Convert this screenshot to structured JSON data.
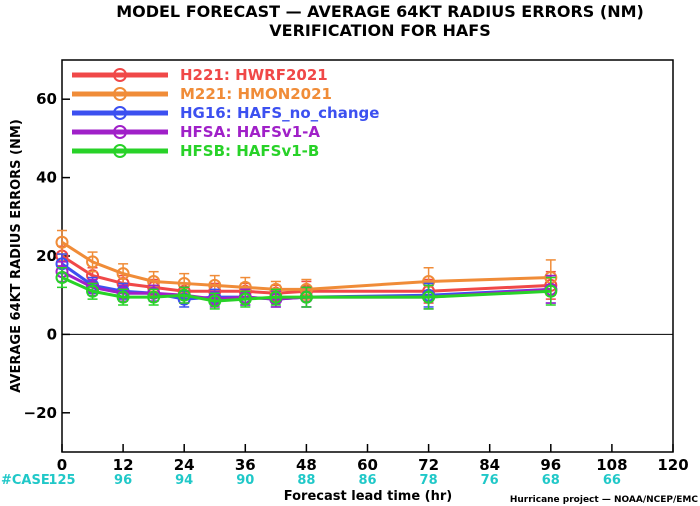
{
  "chart_data": {
    "type": "line",
    "title": "MODEL FORECAST — AVERAGE 64KT RADIUS ERRORS (NM)",
    "subtitle": "VERIFICATION FOR HAFS",
    "xlabel": "Forecast lead time (hr)",
    "ylabel": "AVERAGE 64KT RADIUS ERRORS (NM)",
    "xlim": [
      0,
      120
    ],
    "ylim": [
      -30,
      70
    ],
    "xticks": [
      "0",
      "12",
      "24",
      "36",
      "48",
      "60",
      "72",
      "84",
      "96",
      "108",
      "120"
    ],
    "yticks": [
      "60",
      "40",
      "20",
      "0",
      "−20"
    ],
    "zero_line": true,
    "legend_position": "top-left",
    "x": [
      0,
      6,
      12,
      18,
      24,
      30,
      36,
      42,
      48,
      72,
      96
    ],
    "series": [
      {
        "name": "H221:  HWRF2021",
        "color": "#f04848",
        "values": [
          20,
          15,
          13,
          12,
          11,
          11,
          11,
          10.5,
          11,
          11,
          12.5
        ],
        "err": [
          2.5,
          2.0,
          2.0,
          2.0,
          2.0,
          2.0,
          2.0,
          2.0,
          2.5,
          3.0,
          3.5
        ]
      },
      {
        "name": "M221:  HMON2021",
        "color": "#f08c38",
        "values": [
          23.5,
          18.5,
          15.5,
          13.5,
          13,
          12.5,
          12,
          11.5,
          11.5,
          13.5,
          14.5
        ],
        "err": [
          3.0,
          2.5,
          2.5,
          2.5,
          2.5,
          2.5,
          2.5,
          2.0,
          2.5,
          3.5,
          4.5
        ]
      },
      {
        "name": "HG16:  HAFS_no_change",
        "color": "#3c50f0",
        "values": [
          18,
          12.5,
          11,
          10.5,
          9,
          9.5,
          9.5,
          9,
          9.5,
          10,
          11.5
        ],
        "err": [
          2.5,
          2.0,
          2.0,
          2.0,
          2.0,
          2.0,
          2.0,
          2.0,
          2.5,
          3.0,
          3.5
        ]
      },
      {
        "name": "HFSA:  HAFSv1-A",
        "color": "#a020c8",
        "values": [
          16,
          12,
          10.5,
          10.5,
          10,
          9,
          9.5,
          9,
          9.5,
          9.5,
          11.5
        ],
        "err": [
          2.5,
          2.0,
          2.0,
          2.0,
          2.0,
          2.0,
          2.0,
          2.0,
          2.5,
          3.0,
          3.5
        ]
      },
      {
        "name": "HFSB:  HAFSv1-B",
        "color": "#28d228",
        "values": [
          14.5,
          11,
          9.5,
          9.5,
          10,
          8.5,
          9,
          9.5,
          9.5,
          9.5,
          11
        ],
        "err": [
          2.5,
          2.0,
          2.0,
          2.0,
          2.0,
          2.0,
          2.0,
          2.0,
          2.5,
          3.0,
          3.5
        ]
      }
    ],
    "cases": {
      "label": "#CASE",
      "color": "#20c8c8",
      "x": [
        0,
        12,
        24,
        36,
        48,
        60,
        72,
        84,
        96,
        108
      ],
      "counts": [
        "125",
        "96",
        "94",
        "90",
        "88",
        "86",
        "78",
        "76",
        "68",
        "66"
      ]
    }
  },
  "footer": {
    "credit": "Hurricane project — NOAA/NCEP/EMC"
  }
}
